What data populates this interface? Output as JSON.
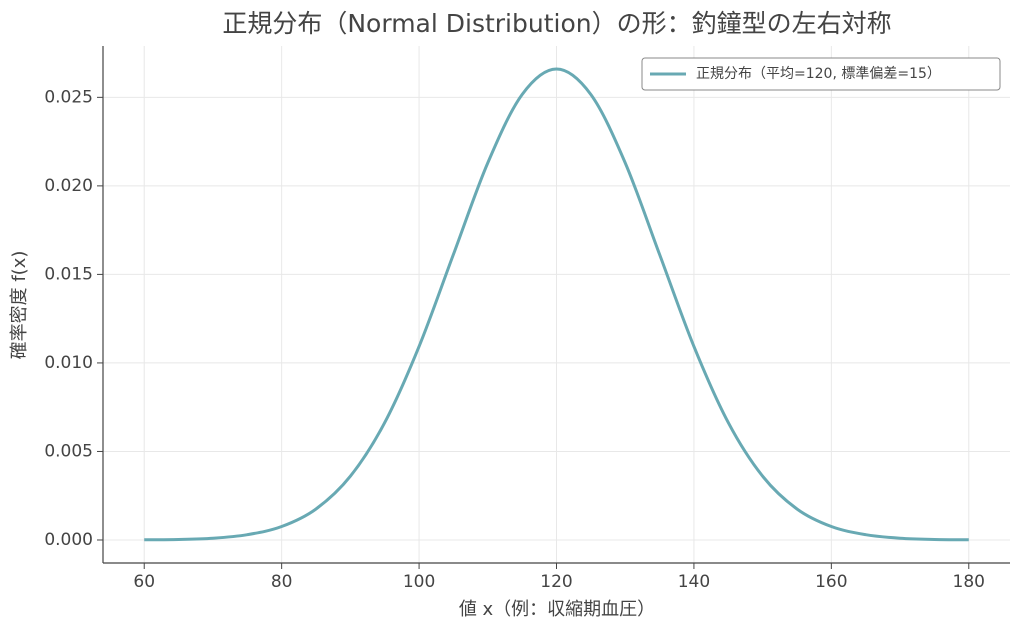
{
  "chart_data": {
    "type": "line",
    "title": "正規分布（Normal Distribution）の形：釣鐘型の左右対称",
    "x_label": "値 x（例：収縮期血圧）",
    "y_label": "確率密度 f(x)",
    "x": [
      60,
      65,
      70,
      75,
      80,
      85,
      90,
      95,
      100,
      105,
      110,
      115,
      120,
      125,
      130,
      135,
      140,
      145,
      150,
      155,
      160,
      165,
      170,
      175,
      180
    ],
    "series": [
      {
        "name": "正規分布（平均=120, 標準偏差=15）",
        "color": "#68a9b3",
        "values": [
          1e-05,
          3e-05,
          0.0001,
          0.0003,
          0.00076,
          0.00175,
          0.0036,
          0.00663,
          0.01093,
          0.01613,
          0.0213,
          0.02516,
          0.0266,
          0.02516,
          0.0213,
          0.01613,
          0.01093,
          0.00663,
          0.0036,
          0.00175,
          0.00076,
          0.0003,
          0.0001,
          3e-05,
          1e-05
        ]
      }
    ],
    "xlim": [
      54,
      186
    ],
    "ylim": [
      -0.0013,
      0.0279
    ],
    "xticks": [
      60,
      80,
      100,
      120,
      140,
      160,
      180
    ],
    "yticks": [
      {
        "value": 0,
        "label": "0.000"
      },
      {
        "value": 0.005,
        "label": "0.005"
      },
      {
        "value": 0.01,
        "label": "0.010"
      },
      {
        "value": 0.015,
        "label": "0.015"
      },
      {
        "value": 0.02,
        "label": "0.020"
      },
      {
        "value": 0.025,
        "label": "0.025"
      }
    ],
    "grid": true,
    "legend": "upper-right"
  }
}
